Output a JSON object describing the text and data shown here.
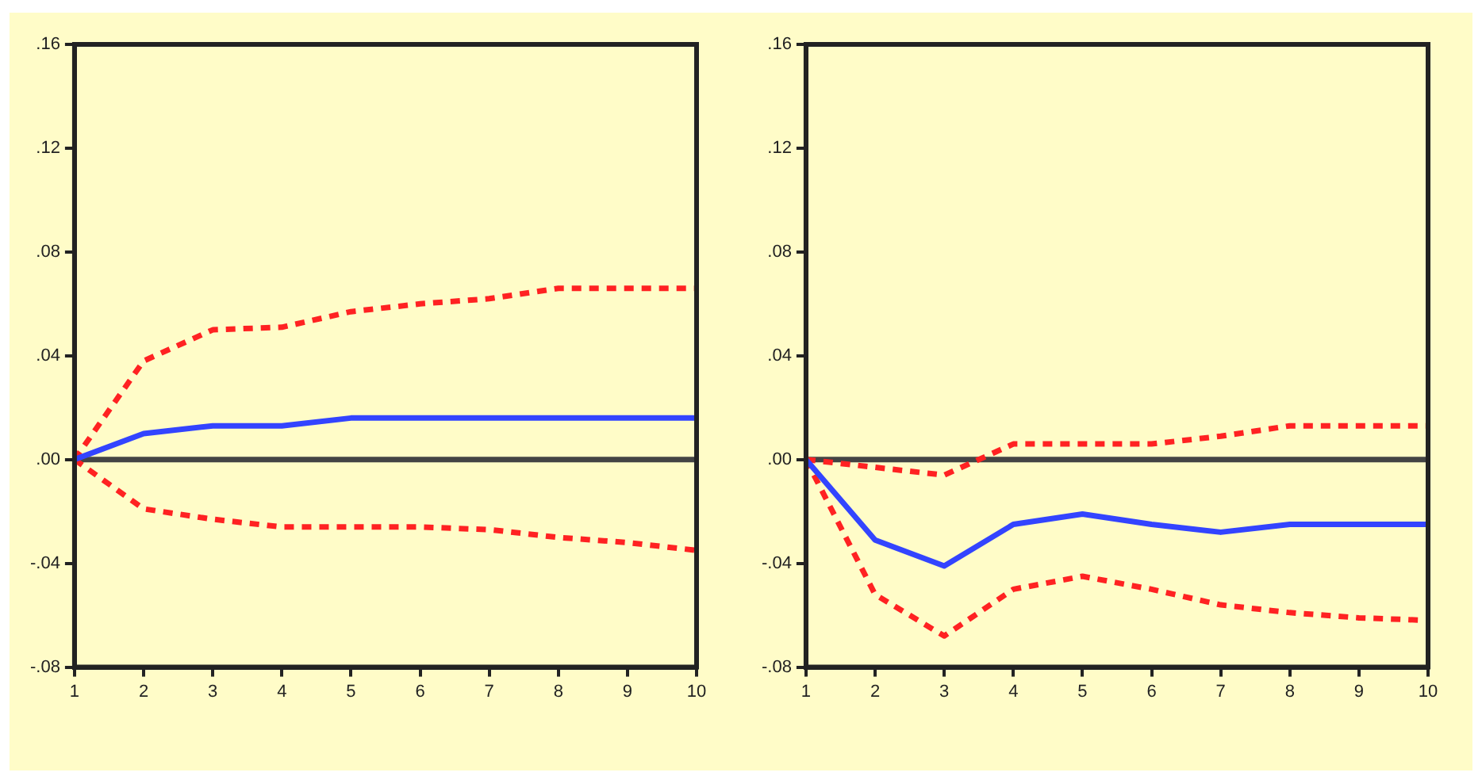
{
  "chart_data": [
    {
      "type": "line",
      "x": [
        1,
        2,
        3,
        4,
        5,
        6,
        7,
        8,
        9,
        10
      ],
      "series": [
        {
          "color": "#3344ff",
          "line_style": "solid",
          "values": [
            0,
            0.01,
            0.013,
            0.013,
            0.016,
            0.016,
            0.016,
            0.016,
            0.016,
            0.016
          ]
        },
        {
          "color": "#ff2222",
          "line_style": "dashed",
          "values": [
            0,
            0.038,
            0.05,
            0.051,
            0.057,
            0.06,
            0.062,
            0.066,
            0.066,
            0.066
          ]
        },
        {
          "color": "#ff2222",
          "line_style": "dashed",
          "values": [
            0,
            -0.019,
            -0.023,
            -0.026,
            -0.026,
            -0.026,
            -0.027,
            -0.03,
            -0.032,
            -0.035
          ]
        }
      ],
      "xlim": [
        1,
        10
      ],
      "xticks": [
        1,
        2,
        3,
        4,
        5,
        6,
        7,
        8,
        9,
        10
      ],
      "ylim": [
        -0.08,
        0.16
      ],
      "yticks": [
        {
          "value": -0.08,
          "label": "-.08"
        },
        {
          "value": -0.04,
          "label": "-.04"
        },
        {
          "value": 0,
          "label": ".00"
        },
        {
          "value": 0.04,
          "label": ".04"
        },
        {
          "value": 0.08,
          "label": ".08"
        },
        {
          "value": 0.12,
          "label": ".12"
        },
        {
          "value": 0.16,
          "label": ".16"
        }
      ],
      "ref_lines": [
        {
          "axis": "y",
          "value": 0,
          "color": "#444444"
        }
      ],
      "grid": false,
      "legend": false,
      "marker": "none"
    },
    {
      "type": "line",
      "x": [
        1,
        2,
        3,
        4,
        5,
        6,
        7,
        8,
        9,
        10
      ],
      "series": [
        {
          "color": "#3344ff",
          "line_style": "solid",
          "values": [
            0,
            -0.031,
            -0.041,
            -0.025,
            -0.021,
            -0.025,
            -0.028,
            -0.025,
            -0.025,
            -0.025
          ]
        },
        {
          "color": "#ff2222",
          "line_style": "dashed",
          "values": [
            0,
            -0.003,
            -0.006,
            0.006,
            0.006,
            0.006,
            0.009,
            0.013,
            0.013,
            0.013
          ]
        },
        {
          "color": "#ff2222",
          "line_style": "dashed",
          "values": [
            0,
            -0.052,
            -0.068,
            -0.05,
            -0.045,
            -0.05,
            -0.056,
            -0.059,
            -0.061,
            -0.062
          ]
        }
      ],
      "xlim": [
        1,
        10
      ],
      "xticks": [
        1,
        2,
        3,
        4,
        5,
        6,
        7,
        8,
        9,
        10
      ],
      "ylim": [
        -0.08,
        0.16
      ],
      "yticks": [
        {
          "value": -0.08,
          "label": "-.08"
        },
        {
          "value": -0.04,
          "label": "-.04"
        },
        {
          "value": 0,
          "label": ".00"
        },
        {
          "value": 0.04,
          "label": ".04"
        },
        {
          "value": 0.08,
          "label": ".08"
        },
        {
          "value": 0.12,
          "label": ".12"
        },
        {
          "value": 0.16,
          "label": ".16"
        }
      ],
      "ref_lines": [
        {
          "axis": "y",
          "value": 0,
          "color": "#444444"
        }
      ],
      "grid": false,
      "legend": false,
      "marker": "none"
    }
  ]
}
